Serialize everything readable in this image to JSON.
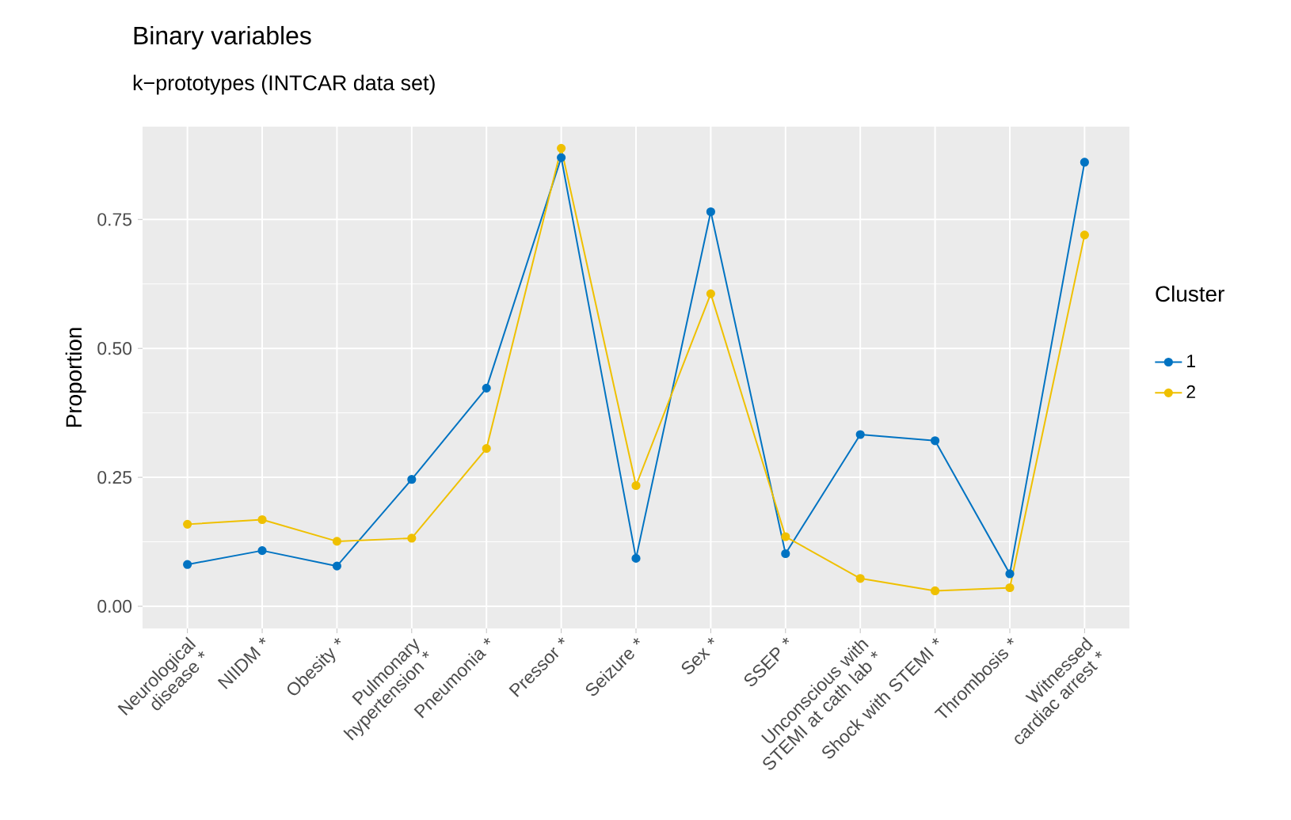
{
  "chart_data": {
    "type": "line",
    "title": "Binary variables",
    "subtitle": "k−prototypes (INTCAR data set)",
    "ylabel": "Proportion",
    "legend_title": "Cluster",
    "categories": [
      "Neurological disease *",
      "NIIDM *",
      "Obesity *",
      "Pulmonary hypertension *",
      "Pneumonia *",
      "Pressor *",
      "Seizure *",
      "Sex *",
      "SSEP *",
      "Unconscious with STEMI at cath lab *",
      "Shock with STEMI *",
      "Thrombosis *",
      "Witnessed cardiac arrest *"
    ],
    "series": [
      {
        "name": "1",
        "color": "#0073c2",
        "values": [
          0.081,
          0.108,
          0.078,
          0.246,
          0.423,
          0.87,
          0.093,
          0.765,
          0.102,
          0.333,
          0.321,
          0.063,
          0.861
        ]
      },
      {
        "name": "2",
        "color": "#efc000",
        "values": [
          0.159,
          0.168,
          0.126,
          0.132,
          0.306,
          0.888,
          0.234,
          0.606,
          0.135,
          0.054,
          0.03,
          0.036,
          0.72
        ]
      }
    ],
    "ylim": [
      -0.043,
      0.93
    ],
    "yticks": [
      {
        "value": 0,
        "label": "0.00"
      },
      {
        "value": 0.25,
        "label": "0.25"
      },
      {
        "value": 0.5,
        "label": "0.50"
      },
      {
        "value": 0.75,
        "label": "0.75"
      }
    ],
    "grid": true,
    "legend": "right",
    "marker": "circle",
    "line_style": "solid"
  }
}
